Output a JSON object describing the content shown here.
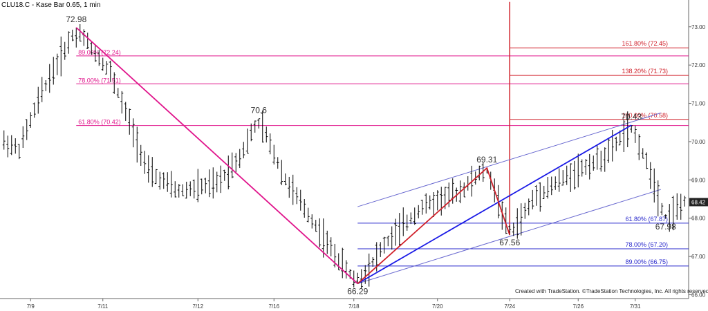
{
  "title": "CLU18.C - Kase Bar 0.65, 1 min",
  "credit": "Created with TradeStation. ©TradeStation Technologies, Inc. All rights reserved.",
  "colors": {
    "bars": "#000000",
    "magenta": "#e0158c",
    "red": "#d0202a",
    "blue": "#1a1ae6",
    "channel": "#6a6ad0",
    "fib_blue": "#2a2acc",
    "grid": "#cccccc"
  },
  "chart_data": {
    "type": "bar",
    "symbol": "CLU18.C",
    "y_axis": {
      "min": 65.9,
      "max": 73.7,
      "ticks": [
        "73.00",
        "72.00",
        "71.00",
        "70.00",
        "69.00",
        "68.00",
        "67.00",
        "66.00"
      ],
      "side": "right"
    },
    "x_axis": {
      "ticks": [
        {
          "label": "7/9",
          "idx": 7
        },
        {
          "label": "7/11",
          "idx": 26
        },
        {
          "label": "7/12",
          "idx": 51
        },
        {
          "label": "7/16",
          "idx": 71
        },
        {
          "label": "7/18",
          "idx": 92
        },
        {
          "label": "7/20",
          "idx": 114
        },
        {
          "label": "7/24",
          "idx": 133
        },
        {
          "label": "7/26",
          "idx": 151
        },
        {
          "label": "7/31",
          "idx": 166
        }
      ]
    },
    "bar_count": 180,
    "last_price": "68.42",
    "pivots": [
      {
        "label": "72.98",
        "idx": 19,
        "price": 72.98,
        "pos": "above"
      },
      {
        "label": "70.6",
        "idx": 67,
        "price": 70.6,
        "pos": "above"
      },
      {
        "label": "66.29",
        "idx": 93,
        "price": 66.29,
        "pos": "below"
      },
      {
        "label": "69.31",
        "idx": 127,
        "price": 69.31,
        "pos": "above"
      },
      {
        "label": "67.56",
        "idx": 133,
        "price": 67.56,
        "pos": "below"
      },
      {
        "label": "70.43",
        "idx": 165,
        "price": 70.43,
        "pos": "above"
      },
      {
        "label": "67.98",
        "idx": 174,
        "price": 67.98,
        "pos": "below"
      }
    ],
    "fib_retracement_down": [
      {
        "label": "89.00% (72.24)",
        "price": 72.24
      },
      {
        "label": "78.00% (71.51)",
        "price": 71.51
      },
      {
        "label": "61.80% (70.42)",
        "price": 70.42
      }
    ],
    "fib_extension_up": [
      {
        "label": "161.80% (72.45)",
        "price": 72.45
      },
      {
        "label": "138.20% (71.73)",
        "price": 71.73
      },
      {
        "label": "100.00% (70.58)",
        "price": 70.58
      }
    ],
    "fib_retracement_up": [
      {
        "label": "61.80% (67.87)",
        "price": 67.87
      },
      {
        "label": "78.00% (67.20)",
        "price": 67.2
      },
      {
        "label": "89.00% (66.75)",
        "price": 66.75
      }
    ],
    "waves": {
      "magenta": [
        {
          "idx": 19,
          "price": 72.98
        },
        {
          "idx": 93,
          "price": 66.29
        }
      ],
      "red": [
        {
          "idx": 93,
          "price": 66.29
        },
        {
          "idx": 127,
          "price": 69.31
        },
        {
          "idx": 133,
          "price": 67.56
        }
      ],
      "blue": [
        {
          "idx": 93,
          "price": 66.29
        },
        {
          "idx": 165,
          "price": 70.43
        }
      ]
    },
    "channel": {
      "upper": [
        {
          "idx": 93,
          "price": 68.3
        },
        {
          "idx": 180,
          "price": 70.85
        }
      ],
      "lower": [
        {
          "idx": 93,
          "price": 66.29
        },
        {
          "idx": 180,
          "price": 68.85
        }
      ]
    },
    "event_line": {
      "idx": 133
    }
  }
}
